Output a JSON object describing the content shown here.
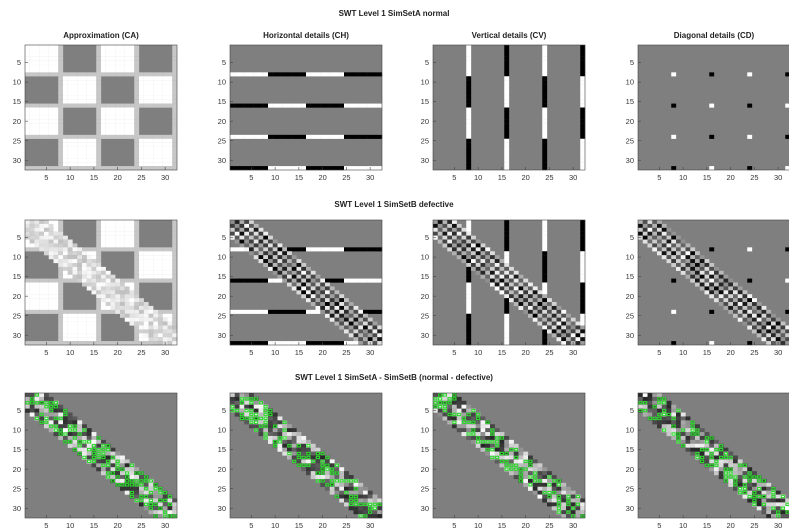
{
  "chart_data": {
    "type": "heatmap",
    "rows": [
      {
        "title": "SWT Level 1 SimSetA normal",
        "kind": "normal"
      },
      {
        "title": "SWT Level 1 SimSetB defective",
        "kind": "defective"
      },
      {
        "title": "SWT Level 1 SimSetA - SimSetB (normal - defective)",
        "kind": "difference"
      }
    ],
    "panel_titles": [
      "Approximation (CA)",
      "Horizontal details (CH)",
      "Vertical details (CV)",
      "Diagonal details (CD)"
    ],
    "panel_keys": [
      "CA",
      "CH",
      "CV",
      "CD"
    ],
    "grid_size": 32,
    "x_ticks": [
      5,
      10,
      15,
      20,
      25,
      30
    ],
    "y_ticks": [
      5,
      10,
      15,
      20,
      25,
      30
    ],
    "xlim": [
      0.5,
      32.5
    ],
    "ylim": [
      0.5,
      32.5
    ],
    "y_direction": "reverse",
    "checker_period": 16,
    "defect_band": {
      "start": [
        1,
        1
      ],
      "end": [
        32,
        32
      ],
      "width": 4
    },
    "colors": {
      "background": "#ffffff",
      "mid_gray": "#7f7f7f",
      "light": "#ffffff",
      "dark": "#000000",
      "marker": "#2fd82f"
    }
  }
}
